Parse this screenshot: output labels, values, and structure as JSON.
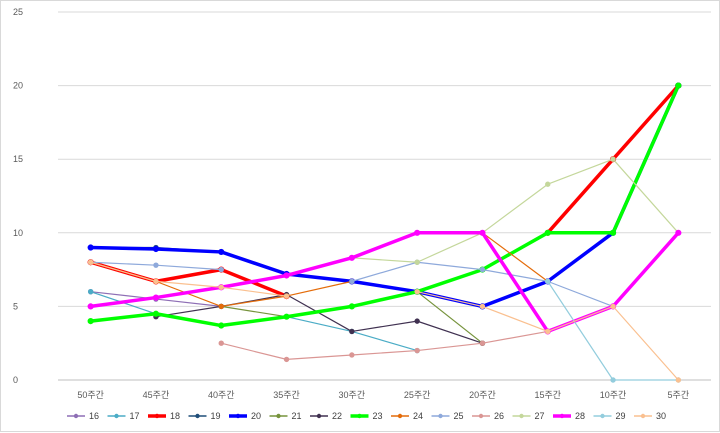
{
  "chart_data": {
    "type": "line",
    "title": "",
    "xlabel": "",
    "ylabel": "",
    "categories": [
      "50주간",
      "45주간",
      "40주간",
      "35주간",
      "30주간",
      "25주간",
      "20주간",
      "15주간",
      "10주간",
      "5주간"
    ],
    "ylim": [
      0,
      25
    ],
    "yticks": [
      0,
      5,
      10,
      15,
      20,
      25
    ],
    "grid": "horizontal",
    "legend_position": "bottom",
    "series": [
      {
        "name": "16",
        "color": "#8E6FB5",
        "width": 1.2,
        "values": [
          6,
          5.5,
          5,
          null,
          null,
          null,
          null,
          null,
          null,
          null
        ]
      },
      {
        "name": "17",
        "color": "#4BACC6",
        "width": 1.2,
        "values": [
          6,
          4.5,
          null,
          4.3,
          3.3,
          2,
          null,
          null,
          null,
          null
        ]
      },
      {
        "name": "18",
        "color": "#FF0000",
        "width": 3.5,
        "values": [
          8,
          6.7,
          7.5,
          5.7,
          null,
          null,
          null,
          10,
          15,
          20
        ]
      },
      {
        "name": "19",
        "color": "#1F4E79",
        "width": 1.2,
        "values": [
          9,
          9,
          8.7,
          7.2,
          6.7,
          6,
          5,
          6.7,
          10,
          20
        ]
      },
      {
        "name": "20",
        "color": "#0000FF",
        "width": 3.5,
        "values": [
          9,
          8.9,
          8.7,
          7.2,
          6.7,
          6,
          5,
          6.7,
          10,
          20
        ]
      },
      {
        "name": "21",
        "color": "#76933C",
        "width": 1.2,
        "values": [
          null,
          null,
          5,
          4.3,
          null,
          6,
          2.5,
          null,
          null,
          null
        ]
      },
      {
        "name": "22",
        "color": "#403151",
        "width": 1.2,
        "values": [
          null,
          4.3,
          5,
          5.8,
          3.3,
          4,
          2.5,
          null,
          null,
          null
        ]
      },
      {
        "name": "23",
        "color": "#00FF00",
        "width": 3.5,
        "values": [
          4,
          4.5,
          3.7,
          4.3,
          5,
          6,
          7.5,
          10,
          10,
          20
        ]
      },
      {
        "name": "24",
        "color": "#E46C0A",
        "width": 1.2,
        "values": [
          8,
          6.7,
          5,
          5.7,
          6.7,
          null,
          10,
          6.7,
          null,
          null
        ]
      },
      {
        "name": "25",
        "color": "#8EA9DB",
        "width": 1.2,
        "values": [
          8,
          7.8,
          7.5,
          null,
          6.7,
          8,
          7.5,
          6.7,
          5,
          null
        ]
      },
      {
        "name": "26",
        "color": "#DA9694",
        "width": 1.2,
        "values": [
          5,
          null,
          2.5,
          1.4,
          1.7,
          2,
          2.5,
          3.3,
          5,
          null
        ]
      },
      {
        "name": "27",
        "color": "#C4D79B",
        "width": 1.2,
        "values": [
          null,
          null,
          null,
          null,
          8.3,
          8,
          10,
          13.3,
          15,
          10
        ]
      },
      {
        "name": "28",
        "color": "#FF00FF",
        "width": 3.5,
        "values": [
          5,
          5.6,
          6.3,
          7.1,
          8.3,
          10,
          10,
          3.3,
          5,
          10
        ]
      },
      {
        "name": "29",
        "color": "#93CDDD",
        "width": 1.2,
        "values": [
          null,
          null,
          null,
          null,
          null,
          null,
          null,
          6.7,
          0,
          0
        ]
      },
      {
        "name": "30",
        "color": "#FAC090",
        "width": 1.2,
        "values": [
          8,
          6.7,
          6.3,
          5.7,
          null,
          6,
          5,
          3.3,
          5,
          0
        ]
      }
    ]
  }
}
